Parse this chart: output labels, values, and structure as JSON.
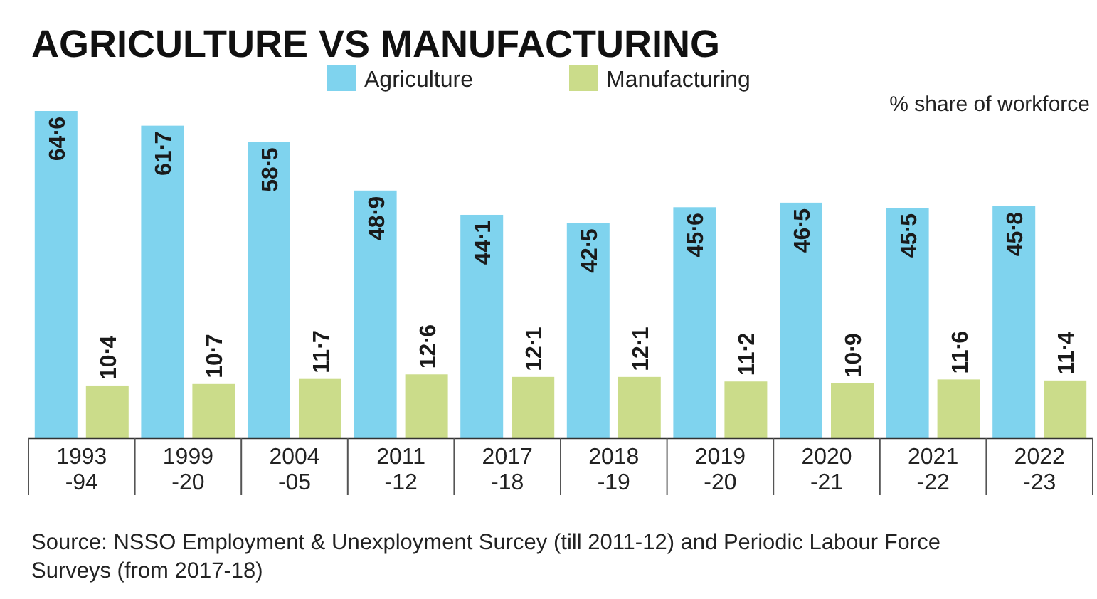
{
  "chart_data": {
    "type": "bar",
    "title": "AGRICULTURE VS MANUFACTURING",
    "ylabel": "% share of workforce",
    "categories": [
      "1993\n-94",
      "1999\n-20",
      "2004\n-05",
      "2011\n-12",
      "2017\n-18",
      "2018\n-19",
      "2019\n-20",
      "2020\n-21",
      "2021\n-22",
      "2022\n-23"
    ],
    "series": [
      {
        "name": "Agriculture",
        "color": "#7fd3ee",
        "values": [
          64.6,
          61.7,
          58.5,
          48.9,
          44.1,
          42.5,
          45.6,
          46.5,
          45.5,
          45.8
        ]
      },
      {
        "name": "Manufacturing",
        "color": "#cbdc8a",
        "values": [
          10.4,
          10.7,
          11.7,
          12.6,
          12.1,
          12.1,
          11.2,
          10.9,
          11.6,
          11.4
        ]
      }
    ],
    "data_labels": true,
    "legend": "top",
    "grid": false,
    "annotations": [
      "Source: NSSO Employment & Unexployment Surcey (till 2011-12) and Periodic Labour Force Surveys (from 2017-18)"
    ]
  }
}
